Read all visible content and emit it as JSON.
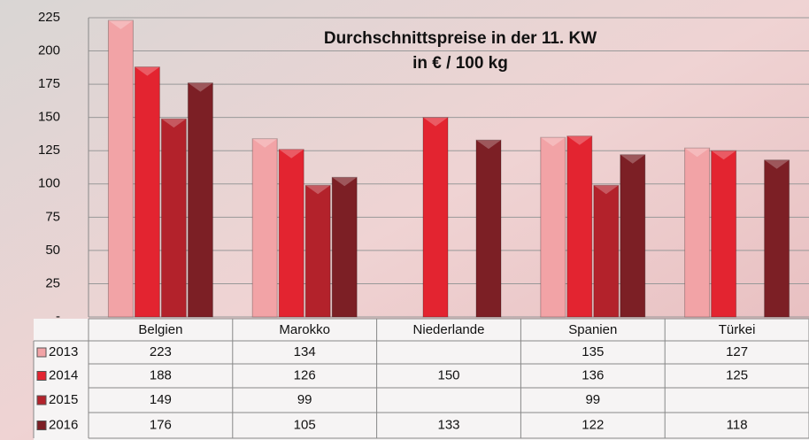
{
  "chart_data": {
    "type": "bar",
    "title": "Durchschnittspreise in der 11. KW",
    "subtitle": "in € / 100 kg",
    "categories": [
      "Belgien",
      "Marokko",
      "Niederlande",
      "Spanien",
      "Türkei"
    ],
    "series": [
      {
        "name": "2013",
        "color": "#f2a3a6",
        "values": [
          223,
          134,
          null,
          135,
          127
        ]
      },
      {
        "name": "2014",
        "color": "#e32430",
        "values": [
          188,
          126,
          150,
          136,
          125
        ]
      },
      {
        "name": "2015",
        "color": "#b3222b",
        "values": [
          149,
          99,
          null,
          99,
          null
        ]
      },
      {
        "name": "2016",
        "color": "#7c1f25",
        "values": [
          176,
          105,
          133,
          122,
          118
        ]
      }
    ],
    "ylim": [
      0,
      225
    ],
    "yticks": [
      {
        "value": 0,
        "label": "-"
      },
      25,
      50,
      75,
      100,
      125,
      150,
      175,
      200,
      225
    ],
    "grid": true
  }
}
